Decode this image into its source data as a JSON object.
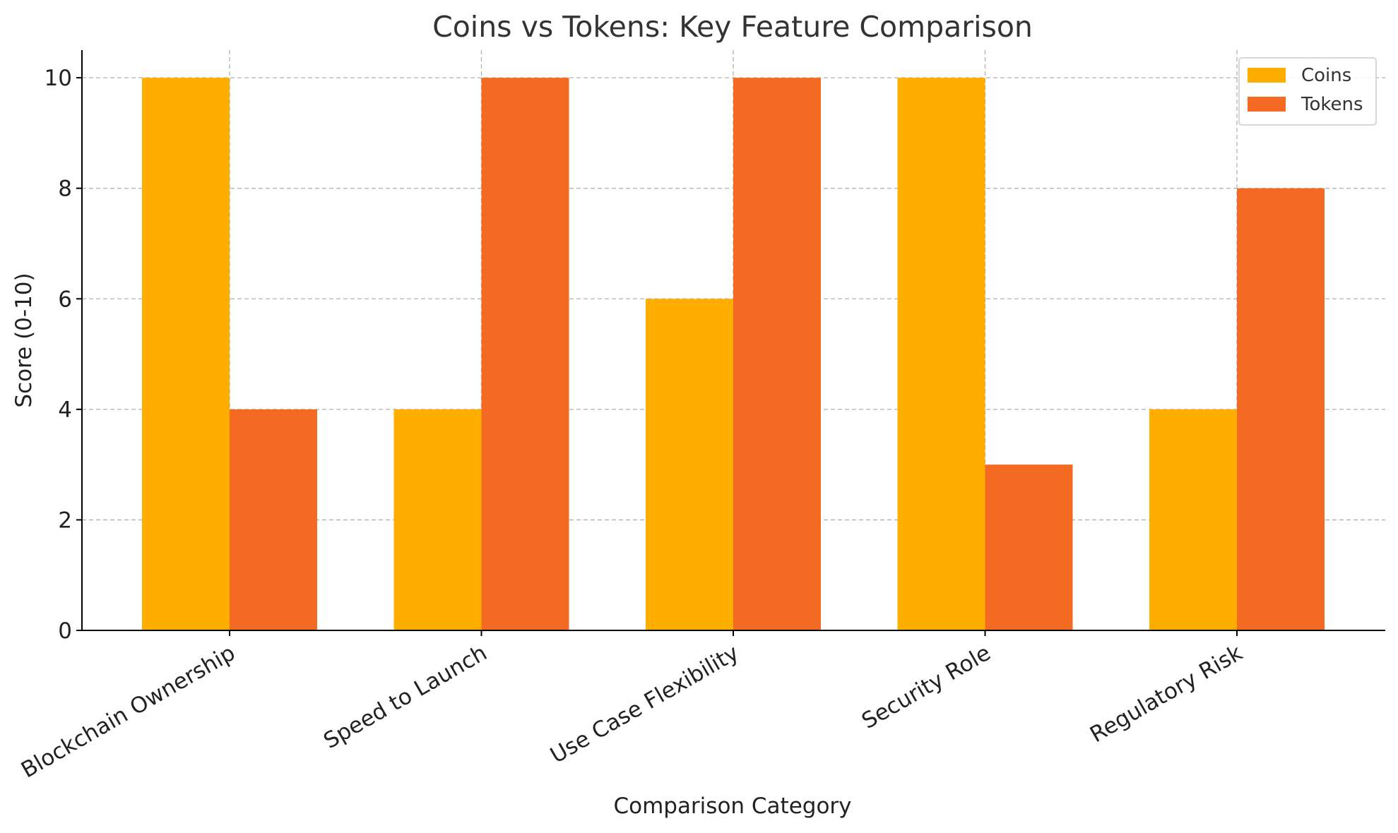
{
  "chart_data": {
    "type": "bar",
    "title": "Coins vs Tokens: Key Feature Comparison",
    "xlabel": "Comparison Category",
    "ylabel": "Score (0-10)",
    "categories": [
      "Blockchain Ownership",
      "Speed to Launch",
      "Use Case Flexibility",
      "Security Role",
      "Regulatory Risk"
    ],
    "series": [
      {
        "name": "Coins",
        "values": [
          10,
          4,
          6,
          10,
          4
        ],
        "color": "#FFAE00"
      },
      {
        "name": "Tokens",
        "values": [
          4,
          10,
          10,
          3,
          8
        ],
        "color": "#F56A22"
      }
    ],
    "ylim": [
      0,
      10.5
    ],
    "yticks": [
      0,
      2,
      4,
      6,
      8,
      10
    ],
    "grid": true,
    "legend": "top-right"
  }
}
